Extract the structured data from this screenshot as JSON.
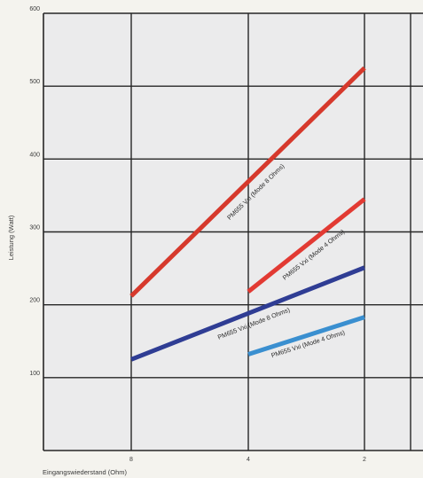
{
  "chart_data": {
    "type": "line",
    "title": "",
    "xlabel": "Eingangswiederstand (Ohm)",
    "ylabel": "Leistung (Watt)",
    "x_tick_labels": [
      "8",
      "4",
      "2"
    ],
    "y_tick_labels": [
      "100",
      "200",
      "300",
      "400",
      "500",
      "600"
    ],
    "ylim": [
      0,
      600
    ],
    "grid": true,
    "series": [
      {
        "name": "PM655 Vxi (Mode 8 Ohms)",
        "x": [
          8,
          2
        ],
        "y": [
          212,
          525
        ],
        "color": "#d6392c"
      },
      {
        "name": "PM655 Vxi (Mode 4 Ohms)",
        "x": [
          4,
          2
        ],
        "y": [
          218,
          345
        ],
        "color": "#e23a33"
      },
      {
        "name": "PM655 Vxi (Mode 8 Ohms)",
        "x": [
          8,
          2
        ],
        "y": [
          125,
          251
        ],
        "color": "#2f3d94"
      },
      {
        "name": "PM655 Vxi (Mode 4 Ohms)",
        "x": [
          4,
          2
        ],
        "y": [
          132,
          183
        ],
        "color": "#3a8fd0"
      }
    ],
    "colors": {
      "plot_background": "#ebebec",
      "grid": "#262626"
    }
  }
}
